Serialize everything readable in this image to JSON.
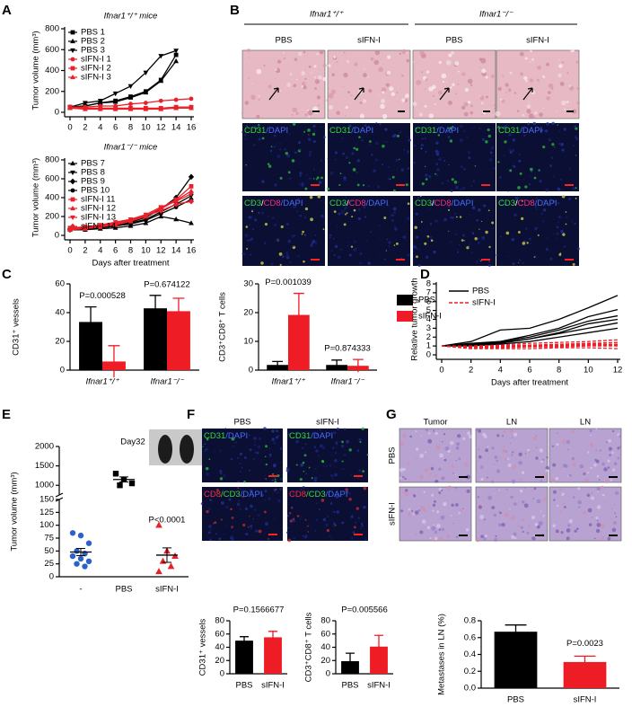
{
  "panel_letters": [
    "A",
    "B",
    "C",
    "D",
    "E",
    "F",
    "G"
  ],
  "chart_data": [
    {
      "type": "line",
      "title": "Ifnar1⁺/⁺ mice",
      "ylabel": "Tumor volume (mm³)",
      "x": [
        0,
        2,
        4,
        6,
        8,
        10,
        12,
        14,
        16
      ],
      "xlim": [
        0,
        16
      ],
      "xticks": [
        0,
        2,
        4,
        6,
        8,
        10,
        12,
        14,
        16
      ],
      "ylim": [
        0,
        800
      ],
      "yticks": [
        0,
        200,
        400,
        600,
        800
      ],
      "legend": "upper left",
      "series": [
        {
          "name": "PBS 1",
          "color": "#000000",
          "marker": "square",
          "values": [
            50,
            60,
            90,
            110,
            150,
            200,
            310,
            550,
            null
          ]
        },
        {
          "name": "PBS 2",
          "color": "#000000",
          "marker": "triangle-up",
          "values": [
            50,
            60,
            90,
            100,
            140,
            190,
            300,
            490,
            null
          ]
        },
        {
          "name": "PBS 3",
          "color": "#000000",
          "marker": "triangle-down",
          "values": [
            50,
            90,
            110,
            180,
            250,
            380,
            540,
            590,
            null
          ]
        },
        {
          "name": "sIFN-I 1",
          "color": "#e8202a",
          "marker": "circle",
          "values": [
            50,
            50,
            60,
            60,
            80,
            90,
            110,
            120,
            130
          ]
        },
        {
          "name": "sIFN-I 2",
          "color": "#e8202a",
          "marker": "square",
          "values": [
            50,
            40,
            40,
            40,
            40,
            40,
            40,
            50,
            50
          ]
        },
        {
          "name": "sIFN-I 3",
          "color": "#e8202a",
          "marker": "triangle-up",
          "values": [
            40,
            30,
            30,
            30,
            30,
            30,
            30,
            40,
            40
          ]
        }
      ]
    },
    {
      "type": "line",
      "title": "Ifnar1⁻/⁻ mice",
      "ylabel": "Tumor volume (mm³)",
      "xlabel": "Days after treatment",
      "x": [
        0,
        2,
        4,
        6,
        8,
        10,
        12,
        14,
        16
      ],
      "xlim": [
        0,
        16
      ],
      "xticks": [
        0,
        2,
        4,
        6,
        8,
        10,
        12,
        14,
        16
      ],
      "ylim": [
        0,
        800
      ],
      "yticks": [
        0,
        200,
        400,
        600,
        800
      ],
      "legend": "upper left",
      "series": [
        {
          "name": "PBS 7",
          "color": "#000000",
          "marker": "triangle-up",
          "values": [
            60,
            60,
            70,
            80,
            100,
            130,
            200,
            170,
            130
          ]
        },
        {
          "name": "PBS 8",
          "color": "#000000",
          "marker": "triangle-down",
          "values": [
            60,
            70,
            80,
            100,
            130,
            170,
            250,
            330,
            420
          ]
        },
        {
          "name": "PBS 9",
          "color": "#000000",
          "marker": "diamond",
          "values": [
            60,
            70,
            90,
            110,
            140,
            190,
            280,
            400,
            620
          ]
        },
        {
          "name": "PBS 10",
          "color": "#000000",
          "marker": "circle",
          "values": [
            60,
            60,
            80,
            100,
            120,
            160,
            230,
            300,
            380
          ]
        },
        {
          "name": "sIFN-I 11",
          "color": "#e8202a",
          "marker": "square",
          "values": [
            60,
            70,
            90,
            110,
            150,
            200,
            290,
            380,
            520
          ]
        },
        {
          "name": "sIFN-I 12",
          "color": "#e8202a",
          "marker": "triangle-up",
          "values": [
            70,
            80,
            100,
            120,
            160,
            210,
            280,
            370,
            470
          ]
        },
        {
          "name": "sIFN-I 13",
          "color": "#e8202a",
          "marker": "triangle-down",
          "values": [
            80,
            90,
            110,
            140,
            170,
            220,
            300,
            360,
            440
          ]
        },
        {
          "name": "sIFN-I 14",
          "color": "#e8202a",
          "marker": "diamond",
          "values": [
            70,
            80,
            100,
            130,
            160,
            210,
            260,
            330,
            360
          ]
        }
      ]
    },
    {
      "type": "bar",
      "ylabel": "CD31⁺ vessels",
      "categories": [
        "Ifnar1⁺/⁺",
        "Ifnar1⁻/⁻"
      ],
      "ylim": [
        0,
        60
      ],
      "yticks": [
        0,
        20,
        40,
        60
      ],
      "series": [
        {
          "color": "#000000",
          "values": [
            33.5,
            43
          ],
          "errors": [
            10.5,
            9
          ]
        },
        {
          "color": "#ee1c25",
          "values": [
            6,
            41
          ],
          "errors": [
            11,
            9
          ]
        }
      ],
      "annotations": [
        "P=0.000528",
        "P=0.674122"
      ]
    },
    {
      "type": "bar",
      "ylabel": "CD3⁺CD8⁺ T cells",
      "categories": [
        "Ifnar1⁺/⁺",
        "Ifnar1⁻/⁻"
      ],
      "ylim": [
        0,
        30
      ],
      "yticks": [
        0,
        10,
        20,
        30
      ],
      "legend": "right",
      "series": [
        {
          "name": "PBS",
          "color": "#000000",
          "values": [
            1.8,
            1.8
          ],
          "errors": [
            1.2,
            1.7
          ]
        },
        {
          "name": "sIFN-I",
          "color": "#ee1c25",
          "values": [
            19.2,
            1.5
          ],
          "errors": [
            7.5,
            2.2
          ]
        }
      ],
      "annotations": [
        "P=0.001039",
        "P=0.874333"
      ]
    },
    {
      "type": "line",
      "ylabel": "Relative tumor growth",
      "xlabel": "Days after treatment",
      "x": [
        0,
        2,
        4,
        6,
        8,
        10,
        12
      ],
      "xlim": [
        0,
        12
      ],
      "xticks": [
        0,
        2,
        4,
        6,
        8,
        10,
        12
      ],
      "ylim": [
        0,
        8
      ],
      "yticks": [
        0,
        1,
        2,
        3,
        4,
        5,
        6,
        7,
        8
      ],
      "legend": "upper left",
      "series": [
        {
          "name": "PBS",
          "color": "#000000",
          "dashed": false,
          "values": [
            [
              1,
              1.3,
              1.5,
              2,
              2.8,
              3.8,
              4.4
            ],
            [
              1,
              1.5,
              2.8,
              3,
              4,
              5.3,
              6.7
            ],
            [
              1,
              1.2,
              1.5,
              2.2,
              3,
              4.3,
              5.1
            ],
            [
              1,
              1.1,
              1.3,
              1.8,
              2.5,
              3.5,
              4
            ],
            [
              1,
              1,
              1.2,
              1.5,
              2,
              2.5,
              3
            ],
            [
              1,
              1.2,
              1.4,
              1.8,
              2.4,
              3,
              3.6
            ]
          ]
        },
        {
          "name": "sIFN-I",
          "color": "#e8202a",
          "dashed": true,
          "values": [
            [
              1,
              1,
              1.1,
              1.3,
              1.4,
              1.5,
              1.7
            ],
            [
              1,
              0.9,
              1,
              1.1,
              1.2,
              1.3,
              1.4
            ],
            [
              1,
              1,
              1,
              1.1,
              1.1,
              1.2,
              1.2
            ],
            [
              1,
              0.8,
              0.8,
              0.9,
              0.9,
              1,
              1
            ],
            [
              1,
              0.7,
              0.7,
              0.7,
              0.8,
              0.8,
              0.7
            ],
            [
              1,
              0.9,
              0.9,
              1,
              1,
              1.1,
              1.1
            ]
          ]
        }
      ]
    },
    {
      "type": "strip",
      "title": "Day32",
      "ylabel": "Tumor volume (mm³)",
      "categories": [
        "-",
        "PBS",
        "sIFN-I"
      ],
      "ylim": [
        0,
        2000
      ],
      "ybreak": [
        150,
        750
      ],
      "yticks": [
        0,
        25,
        50,
        75,
        100,
        125,
        150,
        1000,
        1500,
        2000
      ],
      "colors": [
        "#2a62c9",
        "#000000",
        "#e8202a"
      ],
      "markers": [
        "circle",
        "square",
        "triangle-up"
      ],
      "points": [
        [
          85,
          80,
          65,
          50,
          45,
          40,
          35,
          30,
          25,
          20
        ],
        [
          1300,
          1150,
          1050,
          1000
        ],
        [
          100,
          50,
          40,
          30,
          20,
          10
        ]
      ],
      "means": [
        48,
        1150,
        42
      ],
      "sems": [
        7,
        65,
        14
      ],
      "annotations": [
        "P<0.0001"
      ]
    },
    {
      "type": "bar",
      "ylabel": "CD31⁺ vessels",
      "categories": [
        "PBS",
        "sIFN-I"
      ],
      "ylim": [
        0,
        80
      ],
      "yticks": [
        0,
        20,
        40,
        60,
        80
      ],
      "values": [
        50,
        55
      ],
      "errors": [
        6,
        9
      ],
      "colors": [
        "#000000",
        "#ee1c25"
      ],
      "annotations": [
        "P=0.1566677"
      ]
    },
    {
      "type": "bar",
      "ylabel": "CD3⁺CD8⁺ T cells",
      "categories": [
        "PBS",
        "sIFN-I"
      ],
      "ylim": [
        0,
        80
      ],
      "yticks": [
        0,
        20,
        40,
        60,
        80
      ],
      "values": [
        19,
        41
      ],
      "errors": [
        12,
        17
      ],
      "colors": [
        "#000000",
        "#ee1c25"
      ],
      "annotations": [
        "P=0.005566"
      ]
    },
    {
      "type": "bar",
      "ylabel": "Metastases in LN (%)",
      "categories": [
        "PBS",
        "sIFN-I"
      ],
      "ylim": [
        0,
        0.8
      ],
      "yticks": [
        {
          "value": 0,
          "label": "0.0"
        },
        0.2,
        0.4,
        0.6,
        0.8
      ],
      "values": [
        0.67,
        0.31
      ],
      "errors": [
        0.08,
        0.07
      ],
      "colors": [
        "#000000",
        "#ee1c25"
      ],
      "annotations": [
        "P=0.0023"
      ]
    }
  ],
  "panel_b": {
    "groups": [
      "Ifnar1⁺/⁺",
      "Ifnar1⁻/⁻"
    ],
    "columns": [
      "PBS",
      "sIFN-I",
      "PBS",
      "sIFN-I"
    ],
    "stain_rows": [
      [
        {
          "text": "CD31",
          "color": "#33dd33"
        },
        {
          "text": "/DAPI",
          "color": "#4a6cff"
        }
      ],
      [
        {
          "text": "CD3",
          "color": "#33dd33"
        },
        {
          "text": "/",
          "color": "#ffffff"
        },
        {
          "text": "CD8",
          "color": "#ff2a7a"
        },
        {
          "text": "/DAPI",
          "color": "#4a6cff"
        }
      ]
    ]
  },
  "panel_f": {
    "columns": [
      "PBS",
      "sIFN-I"
    ],
    "stain_rows": [
      [
        {
          "text": "CD31",
          "color": "#33dd33"
        },
        {
          "text": "/DAPI",
          "color": "#4a6cff"
        }
      ],
      [
        {
          "text": "CD8",
          "color": "#ff2a3a"
        },
        {
          "text": "/CD3",
          "color": "#33dd33"
        },
        {
          "text": "/DAPI",
          "color": "#4a6cff"
        }
      ]
    ]
  },
  "panel_g": {
    "columns": [
      "Tumor",
      "LN",
      "LN"
    ],
    "rows": [
      "PBS",
      "sIFN-I"
    ]
  }
}
